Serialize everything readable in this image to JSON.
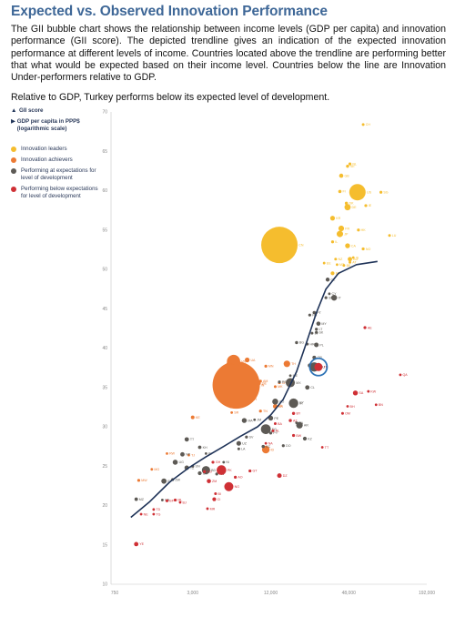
{
  "title": "Expected vs. Observed Innovation Performance",
  "intro": "The GII bubble chart shows the relationship between income levels (GDP per capita) and innovation performance (GII score). The depicted trendline gives an indication of the expected innovation performance at different levels of income. Countries located above the trendline are performing better that what would be expected based on their income level. Countries below the line are Innovation Under-performers relative to GDP.",
  "note": "Relative to GDP, Turkey performs below its expected level of development.",
  "legend": {
    "y_axis": "GII score",
    "x_axis": "GDP per capita in PPP$ (logarithmic scale)",
    "items": [
      {
        "label": "Innovation leaders",
        "color": "#f5bd2e"
      },
      {
        "label": "Innovation achievers",
        "color": "#ec7a34"
      },
      {
        "label": "Performing at expectations for level of development",
        "color": "#5d5a55"
      },
      {
        "label": "Performing below expectations for level of development",
        "color": "#cf3035"
      }
    ]
  },
  "chart_data": {
    "type": "scatter",
    "x_scale": "log",
    "xlim": [
      750,
      192000
    ],
    "ylim": [
      10,
      70
    ],
    "x_ticks": [
      750,
      3000,
      12000,
      48000,
      192000
    ],
    "x_tick_labels": [
      "750",
      "3,000",
      "12,000",
      "48,000",
      "192,000"
    ],
    "y_ticks": [
      10,
      15,
      20,
      25,
      30,
      35,
      40,
      45,
      50,
      55,
      60,
      65,
      70
    ],
    "highlight": "TR",
    "trendline": [
      [
        1000,
        18.5
      ],
      [
        1400,
        20.5
      ],
      [
        2000,
        23
      ],
      [
        2800,
        24.8
      ],
      [
        3800,
        26.2
      ],
      [
        5200,
        27.5
      ],
      [
        7000,
        28.8
      ],
      [
        9500,
        30
      ],
      [
        12000,
        31.5
      ],
      [
        15000,
        33.5
      ],
      [
        19000,
        37
      ],
      [
        23000,
        41
      ],
      [
        27000,
        44.5
      ],
      [
        32000,
        47.5
      ],
      [
        40000,
        49.5
      ],
      [
        55000,
        50.6
      ],
      [
        80000,
        51
      ]
    ],
    "series": [
      {
        "color": "#f5bd2e",
        "points": [
          {
            "l": "CH",
            "x": 62000,
            "y": 68.4,
            "r": 1.5
          },
          {
            "l": "SE",
            "x": 47000,
            "y": 63.1,
            "r": 1.7
          },
          {
            "l": "NL",
            "x": 49000,
            "y": 63.4,
            "r": 1.6
          },
          {
            "l": "GB",
            "x": 42000,
            "y": 61.9,
            "r": 2.3
          },
          {
            "l": "US",
            "x": 56000,
            "y": 59.8,
            "r": 9
          },
          {
            "l": "FI",
            "x": 41000,
            "y": 59.9,
            "r": 1.8
          },
          {
            "l": "SG",
            "x": 85000,
            "y": 59.8,
            "r": 1.6
          },
          {
            "l": "IE",
            "x": 65000,
            "y": 58.1,
            "r": 1.6
          },
          {
            "l": "DK",
            "x": 46000,
            "y": 58.4,
            "r": 1.7
          },
          {
            "l": "DE",
            "x": 47000,
            "y": 57.9,
            "r": 3.4
          },
          {
            "l": "IL",
            "x": 36000,
            "y": 53.5,
            "r": 1.6
          },
          {
            "l": "KR",
            "x": 36000,
            "y": 56.5,
            "r": 2.6
          },
          {
            "l": "LU",
            "x": 99000,
            "y": 54.3,
            "r": 1.5
          },
          {
            "l": "JP",
            "x": 41000,
            "y": 54.5,
            "r": 3.5
          },
          {
            "l": "HK",
            "x": 57000,
            "y": 55,
            "r": 1.6
          },
          {
            "l": "FR",
            "x": 42000,
            "y": 55.2,
            "r": 3.1
          },
          {
            "l": "CN",
            "x": 14000,
            "y": 53.1,
            "r": 20
          },
          {
            "l": "CA",
            "x": 47000,
            "y": 53,
            "r": 2.7
          },
          {
            "l": "NO",
            "x": 62000,
            "y": 52.6,
            "r": 1.6
          },
          {
            "l": "AT",
            "x": 49000,
            "y": 50.9,
            "r": 1.5
          },
          {
            "l": "NZ",
            "x": 38000,
            "y": 51.3,
            "r": 1.5
          },
          {
            "l": "BE",
            "x": 44000,
            "y": 50.5,
            "r": 1.5
          },
          {
            "l": "AU",
            "x": 49000,
            "y": 51.3,
            "r": 2.4
          },
          {
            "l": "IS",
            "x": 52000,
            "y": 51.5,
            "r": 1.4
          },
          {
            "l": "EE",
            "x": 31000,
            "y": 50.8,
            "r": 1.4
          },
          {
            "l": "MT",
            "x": 39000,
            "y": 50.6,
            "r": 1.4
          },
          {
            "l": "ES",
            "x": 36000,
            "y": 49.5,
            "r": 2.1
          }
        ]
      },
      {
        "color": "#ec7a34",
        "points": [
          {
            "l": "IN",
            "x": 6500,
            "y": 35.3,
            "r": 26
          },
          {
            "l": "VN",
            "x": 6200,
            "y": 38.3,
            "r": 7.3
          },
          {
            "l": "UA",
            "x": 7900,
            "y": 38.5,
            "r": 2.6
          },
          {
            "l": "MD",
            "x": 5600,
            "y": 38.0,
            "r": 1.5
          },
          {
            "l": "MN",
            "x": 11000,
            "y": 37.7,
            "r": 1.6
          },
          {
            "l": "GE",
            "x": 9800,
            "y": 35.5,
            "r": 1.6
          },
          {
            "l": "TH",
            "x": 16000,
            "y": 38,
            "r": 3.6
          },
          {
            "l": "PH",
            "x": 8000,
            "y": 33.5,
            "r": 3.4
          },
          {
            "l": "AM",
            "x": 10000,
            "y": 35.8,
            "r": 1.6
          },
          {
            "l": "MK",
            "x": 13000,
            "y": 35.1,
            "r": 1.5
          },
          {
            "l": "CR",
            "x": 14000,
            "y": 35.6,
            "r": 1.6
          },
          {
            "l": "BR",
            "x": 13000,
            "y": 32.6,
            "r": 2.5
          },
          {
            "l": "ID",
            "x": 11000,
            "y": 27.1,
            "r": 4.2
          },
          {
            "l": "KE",
            "x": 3000,
            "y": 31.2,
            "r": 2
          },
          {
            "l": "RW",
            "x": 1900,
            "y": 26.6,
            "r": 1.4
          },
          {
            "l": "MG",
            "x": 1450,
            "y": 24.6,
            "r": 1.4
          },
          {
            "l": "MW",
            "x": 1150,
            "y": 23.2,
            "r": 1.6
          },
          {
            "l": "TJ",
            "x": 2800,
            "y": 26.4,
            "r": 1.4
          },
          {
            "l": "TN",
            "x": 10000,
            "y": 32.0,
            "r": 1.6
          },
          {
            "l": "ZA",
            "x": 13000,
            "y": 32.7,
            "r": 1.8
          },
          {
            "l": "SR",
            "x": 6000,
            "y": 31.8,
            "r": 1.4
          }
        ]
      },
      {
        "color": "#5d5a55",
        "points": [
          {
            "l": "CZ",
            "x": 33000,
            "y": 48.7,
            "r": 2.2
          },
          {
            "l": "SI",
            "x": 32000,
            "y": 46.4,
            "r": 1.6
          },
          {
            "l": "CY",
            "x": 34000,
            "y": 46.9,
            "r": 1.4
          },
          {
            "l": "IT",
            "x": 37000,
            "y": 46.4,
            "r": 3.2
          },
          {
            "l": "PT",
            "x": 26000,
            "y": 44.5,
            "r": 1.8
          },
          {
            "l": "LT",
            "x": 27000,
            "y": 42.4,
            "r": 1.6
          },
          {
            "l": "MY",
            "x": 28000,
            "y": 43.1,
            "r": 2.3
          },
          {
            "l": "LV",
            "x": 25000,
            "y": 41.9,
            "r": 1.5
          },
          {
            "l": "SK",
            "x": 27000,
            "y": 42.0,
            "r": 1.6
          },
          {
            "l": "HU",
            "x": 24000,
            "y": 44.2,
            "r": 1.6
          },
          {
            "l": "PL",
            "x": 27000,
            "y": 40.4,
            "r": 2.5
          },
          {
            "l": "BG",
            "x": 19000,
            "y": 40.7,
            "r": 1.7
          },
          {
            "l": "HR",
            "x": 23000,
            "y": 40.5,
            "r": 1.5
          },
          {
            "l": "GR",
            "x": 26000,
            "y": 38.8,
            "r": 2
          },
          {
            "l": "RO",
            "x": 24000,
            "y": 37.8,
            "r": 2.2
          },
          {
            "l": "RU",
            "x": 26000,
            "y": 37.6,
            "r": 5.1
          },
          {
            "l": "RS",
            "x": 14000,
            "y": 35.7,
            "r": 1.6
          },
          {
            "l": "CL",
            "x": 23000,
            "y": 35.0,
            "r": 2.4
          },
          {
            "l": "ME",
            "x": 17000,
            "y": 36.5,
            "r": 1.4
          },
          {
            "l": "MX",
            "x": 17000,
            "y": 35.6,
            "r": 5
          },
          {
            "l": "CO",
            "x": 13000,
            "y": 33.2,
            "r": 3.3
          },
          {
            "l": "UY",
            "x": 19000,
            "y": 33.1,
            "r": 1.6
          },
          {
            "l": "JM",
            "x": 9000,
            "y": 30.9,
            "r": 1.4
          },
          {
            "l": "PE",
            "x": 12000,
            "y": 31.1,
            "r": 2.7
          },
          {
            "l": "PA",
            "x": 19000,
            "y": 30.5,
            "r": 1.5
          },
          {
            "l": "AR",
            "x": 20000,
            "y": 30.2,
            "r": 3.6
          },
          {
            "l": "IR",
            "x": 18000,
            "y": 33.0,
            "r": 5.2
          },
          {
            "l": "MA",
            "x": 7500,
            "y": 30.8,
            "r": 2.7
          },
          {
            "l": "KZ",
            "x": 22000,
            "y": 28.5,
            "r": 2.1
          },
          {
            "l": "LK",
            "x": 11000,
            "y": 29.4,
            "r": 2.5
          },
          {
            "l": "EG",
            "x": 11000,
            "y": 29.7,
            "r": 5.4
          },
          {
            "l": "PY",
            "x": 12000,
            "y": 29.2,
            "r": 1.6
          },
          {
            "l": "UZ",
            "x": 6800,
            "y": 27.9,
            "r": 2.6
          },
          {
            "l": "DO",
            "x": 15000,
            "y": 27.6,
            "r": 1.6
          },
          {
            "l": "EC",
            "x": 10500,
            "y": 27.5,
            "r": 1.8
          },
          {
            "l": "SV",
            "x": 7800,
            "y": 28.7,
            "r": 1.6
          },
          {
            "l": "TT",
            "x": 2700,
            "y": 28.4,
            "r": 2.4
          },
          {
            "l": "KH",
            "x": 3400,
            "y": 27.4,
            "r": 1.9
          },
          {
            "l": "NP",
            "x": 2500,
            "y": 26.5,
            "r": 2.4
          },
          {
            "l": "KY",
            "x": 3800,
            "y": 26.6,
            "r": 1.4
          },
          {
            "l": "UG",
            "x": 2200,
            "y": 25.5,
            "r": 2.8
          },
          {
            "l": "LA",
            "x": 6800,
            "y": 27.2,
            "r": 1.5
          },
          {
            "l": "TZ",
            "x": 2700,
            "y": 24.8,
            "r": 2.5
          },
          {
            "l": "SN",
            "x": 3000,
            "y": 25,
            "r": 1.6
          },
          {
            "l": "ZW",
            "x": 2100,
            "y": 23.3,
            "r": 1.6
          },
          {
            "l": "ET",
            "x": 1800,
            "y": 23.1,
            "r": 2.9
          },
          {
            "l": "CM",
            "x": 3400,
            "y": 24.1,
            "r": 2.1
          },
          {
            "l": "NI",
            "x": 5200,
            "y": 25.5,
            "r": 1.4
          },
          {
            "l": "BD",
            "x": 3800,
            "y": 24.5,
            "r": 4.5
          },
          {
            "l": "HN",
            "x": 4600,
            "y": 24.0,
            "r": 1.6
          },
          {
            "l": "MZ",
            "x": 1100,
            "y": 20.8,
            "r": 1.9
          },
          {
            "l": "CN2",
            "x": 1750,
            "y": 20.7,
            "r": 1.4
          }
        ]
      },
      {
        "color": "#cf3035",
        "points": [
          {
            "l": "AE",
            "x": 64000,
            "y": 42.6,
            "r": 1.6
          },
          {
            "l": "QA",
            "x": 120000,
            "y": 36.6,
            "r": 1.4
          },
          {
            "l": "KW",
            "x": 68000,
            "y": 34.5,
            "r": 1.4
          },
          {
            "l": "SA",
            "x": 54000,
            "y": 34.3,
            "r": 2.7
          },
          {
            "l": "BN",
            "x": 78000,
            "y": 32.8,
            "r": 1.4
          },
          {
            "l": "BH",
            "x": 47000,
            "y": 32.6,
            "r": 1.4
          },
          {
            "l": "OM",
            "x": 43000,
            "y": 31.7,
            "r": 1.5
          },
          {
            "l": "TR",
            "x": 28000,
            "y": 37.6,
            "r": 4.5
          },
          {
            "l": "PK",
            "x": 5000,
            "y": 24.5,
            "r": 5.3
          },
          {
            "l": "NG",
            "x": 5700,
            "y": 22.4,
            "r": 5
          },
          {
            "l": "AZ",
            "x": 17000,
            "y": 30.8,
            "r": 1.7
          },
          {
            "l": "BA",
            "x": 13000,
            "y": 30.4,
            "r": 1.5
          },
          {
            "l": "GT",
            "x": 8300,
            "y": 24.4,
            "r": 1.6
          },
          {
            "l": "TT2",
            "x": 30000,
            "y": 27.4,
            "r": 1.4
          },
          {
            "l": "BW",
            "x": 18000,
            "y": 28.9,
            "r": 1.6
          },
          {
            "l": "NA",
            "x": 11000,
            "y": 27.9,
            "r": 1.4
          },
          {
            "l": "AL",
            "x": 12500,
            "y": 29.5,
            "r": 1.5
          },
          {
            "l": "BY",
            "x": 18000,
            "y": 31.7,
            "r": 1.7
          },
          {
            "l": "KG",
            "x": 3700,
            "y": 24.3,
            "r": 1.7
          },
          {
            "l": "GH",
            "x": 4300,
            "y": 25.5,
            "r": 1.6
          },
          {
            "l": "AO",
            "x": 6400,
            "y": 23.6,
            "r": 1.6
          },
          {
            "l": "DZ",
            "x": 14000,
            "y": 23.8,
            "r": 2.5
          },
          {
            "l": "BJ",
            "x": 2400,
            "y": 20.4,
            "r": 1.4
          },
          {
            "l": "ZM",
            "x": 4000,
            "y": 23.1,
            "r": 2.3
          },
          {
            "l": "BF",
            "x": 1900,
            "y": 20.6,
            "r": 1.6
          },
          {
            "l": "CI",
            "x": 4400,
            "y": 20.8,
            "r": 2.1
          },
          {
            "l": "ML",
            "x": 2200,
            "y": 20.7,
            "r": 1.6
          },
          {
            "l": "TG",
            "x": 1500,
            "y": 18.9,
            "r": 1.4
          },
          {
            "l": "NE",
            "x": 1200,
            "y": 18.9,
            "r": 1.4
          },
          {
            "l": "YE",
            "x": 1100,
            "y": 15.1,
            "r": 2.4
          },
          {
            "l": "BI",
            "x": 4500,
            "y": 21.5,
            "r": 1.5
          },
          {
            "l": "TD",
            "x": 1500,
            "y": 19.5,
            "r": 1.4
          },
          {
            "l": "MR",
            "x": 3900,
            "y": 19.6,
            "r": 1.4
          }
        ]
      }
    ]
  }
}
